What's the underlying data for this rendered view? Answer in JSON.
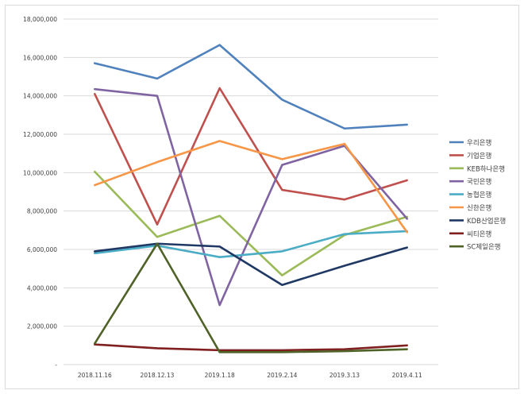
{
  "chart_data": {
    "type": "line",
    "title": "",
    "xlabel": "",
    "ylabel": "",
    "categories": [
      "2018.11.16",
      "2018.12.13",
      "2019.1.18",
      "2019.2.14",
      "2019.3.13",
      "2019.4.11"
    ],
    "ylim": [
      0,
      18000000
    ],
    "yticks": [
      0,
      2000000,
      4000000,
      6000000,
      8000000,
      10000000,
      12000000,
      14000000,
      16000000,
      18000000
    ],
    "ytick_labels": [
      "-",
      "2,000,000",
      "4,000,000",
      "6,000,000",
      "8,000,000",
      "10,000,000",
      "12,000,000",
      "14,000,000",
      "16,000,000",
      "18,000,000"
    ],
    "grid": true,
    "legend_position": "right",
    "series": [
      {
        "name": "우리은행",
        "color": "#4f81bd",
        "values": [
          15700000,
          14900000,
          16650000,
          13800000,
          12300000,
          12500000
        ]
      },
      {
        "name": "기업은행",
        "color": "#c0504d",
        "values": [
          14100000,
          7300000,
          14400000,
          9100000,
          8600000,
          9600000
        ]
      },
      {
        "name": "KEB하나은행",
        "color": "#9bbb59",
        "values": [
          10050000,
          6650000,
          7750000,
          4650000,
          6750000,
          7700000
        ]
      },
      {
        "name": "국민은행",
        "color": "#8064a2",
        "values": [
          14350000,
          14000000,
          3100000,
          10400000,
          11400000,
          7600000
        ]
      },
      {
        "name": "농협은행",
        "color": "#4bacc6",
        "values": [
          5800000,
          6200000,
          5600000,
          5900000,
          6800000,
          6950000
        ]
      },
      {
        "name": "신한은행",
        "color": "#f79646",
        "values": [
          9350000,
          10550000,
          11650000,
          10700000,
          11500000,
          6900000
        ]
      },
      {
        "name": "KDB산업은행",
        "color": "#1f3864",
        "values": [
          5900000,
          6300000,
          6150000,
          4150000,
          5150000,
          6100000
        ]
      },
      {
        "name": "씨티은행",
        "color": "#7f1f1f",
        "values": [
          1050000,
          850000,
          750000,
          750000,
          800000,
          1000000
        ]
      },
      {
        "name": "SC제일은행",
        "color": "#4f6228",
        "values": [
          1100000,
          6300000,
          650000,
          650000,
          700000,
          800000
        ]
      }
    ]
  }
}
